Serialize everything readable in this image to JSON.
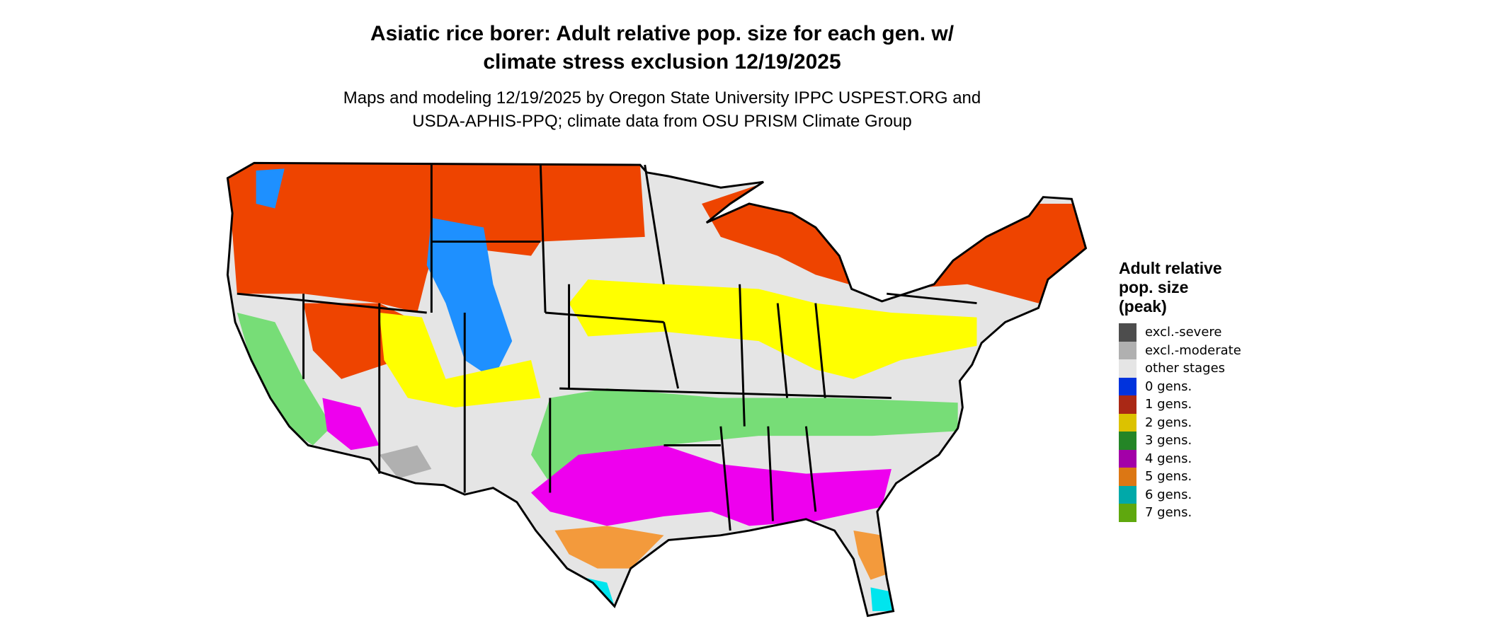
{
  "title": "Asiatic rice borer: Adult relative pop. size for each gen. w/ climate stress exclusion 12/19/2025",
  "title_lines": [
    "Asiatic rice borer: Adult relative pop. size for each gen. w/",
    "climate stress exclusion 12/19/2025"
  ],
  "subtitle_lines": [
    "Maps and modeling 12/19/2025 by Oregon State University IPPC USPEST.ORG and",
    "USDA-APHIS-PPQ; climate data from OSU PRISM Climate Group"
  ],
  "legend": {
    "title_lines": [
      "Adult relative",
      "pop. size",
      "(peak)"
    ],
    "items": [
      {
        "label": "excl.-severe",
        "color": "#4d4d4d"
      },
      {
        "label": "excl.-moderate",
        "color": "#b0b0b0"
      },
      {
        "label": "other stages",
        "color": "#e5e5e5"
      },
      {
        "label": "0 gens.",
        "color": "#0033dd"
      },
      {
        "label": "1 gens.",
        "color": "#aa2815"
      },
      {
        "label": "2 gens.",
        "color": "#dcc200"
      },
      {
        "label": "3 gens.",
        "color": "#248526"
      },
      {
        "label": "4 gens.",
        "color": "#a300a8"
      },
      {
        "label": "5 gens.",
        "color": "#dc7714"
      },
      {
        "label": "6 gens.",
        "color": "#00a9a9"
      },
      {
        "label": "7 gens.",
        "color": "#5fa80e"
      }
    ]
  },
  "map_colors": {
    "red": "#ee4400",
    "yellow": "#ffff00",
    "green": "#77dd77",
    "magenta": "#ee00ee",
    "orange": "#f39a3c",
    "cyan": "#00e5ee",
    "blue": "#1e90ff",
    "gray": "#e5e5e5"
  }
}
